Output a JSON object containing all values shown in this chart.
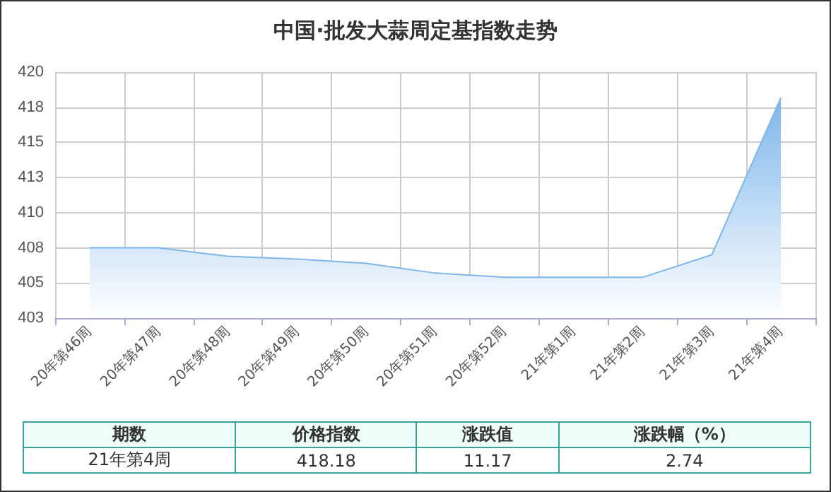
{
  "chart_data": {
    "type": "area",
    "title": "中国·批发大蒜周定基指数走势",
    "categories": [
      "20年第46周",
      "20年第47周",
      "20年第48周",
      "20年第49周",
      "20年第50周",
      "20年第51周",
      "20年第52周",
      "21年第1周",
      "21年第2周",
      "21年第3周",
      "21年第4周"
    ],
    "values": [
      407.5,
      407.5,
      406.9,
      406.7,
      406.4,
      405.7,
      405.4,
      405.4,
      405.4,
      407.0,
      418.18
    ],
    "color": "#7eb6ea",
    "ylim": [
      402.5,
      420
    ],
    "yticks": [
      {
        "value": 402.5,
        "label": "403"
      },
      {
        "value": 405,
        "label": "405"
      },
      {
        "value": 407.5,
        "label": "408"
      },
      {
        "value": 410,
        "label": "410"
      },
      {
        "value": 412.5,
        "label": "413"
      },
      {
        "value": 415,
        "label": "415"
      },
      {
        "value": 417.5,
        "label": "418"
      },
      {
        "value": 420,
        "label": "420"
      }
    ],
    "grid": true,
    "marker": "none",
    "annotations": [
      "期数",
      "价格指数",
      "涨跌值",
      "涨跌幅（%）",
      "21年第4周",
      "418.18",
      "11.17",
      "2.74"
    ]
  }
}
